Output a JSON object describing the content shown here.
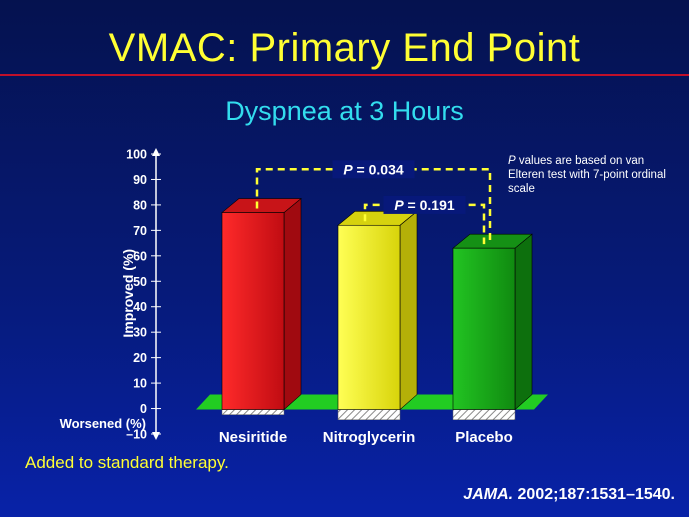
{
  "slide": {
    "title": "VMAC: Primary End Point",
    "subtitle": "Dyspnea at 3 Hours",
    "footnote": "Added to standard therapy.",
    "citation_journal": "JAMA.",
    "citation_ref": " 2002;187:1531–1540.",
    "note_p": "P",
    "note_rest": " values are based on van Elteren test with 7-point ordinal scale"
  },
  "colors": {
    "title": "#ffff33",
    "subtitle": "#33ddee",
    "nesiritide": "#e8141c",
    "nitroglycerin": "#f2f21a",
    "placebo": "#1ea81e",
    "floor": "#22cc22",
    "bracket": "#ffff33"
  },
  "chart_data": {
    "type": "bar",
    "title": "Dyspnea at 3 Hours",
    "ylabel_top": "Improved (%)",
    "ylabel_bottom": "Worsened (%)",
    "categories": [
      "Nesiritide",
      "Nitroglycerin",
      "Placebo"
    ],
    "improved": [
      77,
      72,
      63
    ],
    "worsened": [
      -2,
      -4,
      -4
    ],
    "ylim": [
      -10,
      100
    ],
    "yticks": [
      100,
      90,
      80,
      70,
      60,
      50,
      40,
      30,
      20,
      10,
      0,
      -10
    ],
    "ytick_labels": [
      "100",
      "90",
      "80",
      "70",
      "60",
      "50",
      "40",
      "30",
      "20",
      "10",
      "0",
      "–10"
    ],
    "annotations": [
      {
        "p_label": "P",
        "text": " = 0.034",
        "from": "Nesiritide",
        "to": "Placebo",
        "level": 94
      },
      {
        "p_label": "P",
        "text": " = 0.191",
        "from": "Nitroglycerin",
        "to": "Placebo",
        "level": 80
      }
    ]
  }
}
